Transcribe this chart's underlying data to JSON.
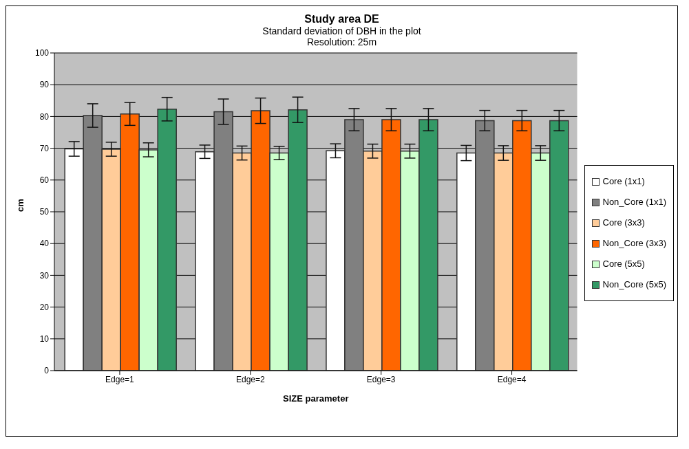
{
  "chart_data": {
    "type": "bar",
    "title": "Study area DE",
    "subtitle": "Standard deviation of DBH in the plot\nResolution: 25m",
    "xlabel": "SIZE parameter",
    "ylabel": "cm",
    "categories": [
      "Edge=1",
      "Edge=2",
      "Edge=3",
      "Edge=4"
    ],
    "series": [
      {
        "name": "Core (1x1)",
        "color": "#ffffff",
        "values": [
          69.8,
          68.9,
          69.2,
          68.5
        ],
        "errors": [
          2.3,
          2.1,
          2.2,
          2.4
        ]
      },
      {
        "name": "Non_Core (1x1)",
        "color": "#808080",
        "values": [
          80.3,
          81.5,
          79.0,
          78.7
        ],
        "errors": [
          3.7,
          4.0,
          3.5,
          3.2
        ]
      },
      {
        "name": "Core (3x3)",
        "color": "#ffcc99",
        "values": [
          69.7,
          68.5,
          69.1,
          68.5
        ],
        "errors": [
          2.2,
          2.2,
          2.2,
          2.3
        ]
      },
      {
        "name": "Non_Core (3x3)",
        "color": "#ff6600",
        "values": [
          80.8,
          81.8,
          79.0,
          78.7
        ],
        "errors": [
          3.6,
          4.0,
          3.5,
          3.2
        ]
      },
      {
        "name": "Core (5x5)",
        "color": "#ccffcc",
        "values": [
          69.5,
          68.5,
          69.1,
          68.5
        ],
        "errors": [
          2.2,
          2.1,
          2.2,
          2.3
        ]
      },
      {
        "name": "Non_Core (5x5)",
        "color": "#339966",
        "values": [
          82.3,
          82.1,
          79.0,
          78.7
        ],
        "errors": [
          3.7,
          4.0,
          3.5,
          3.2
        ]
      }
    ],
    "ylim": [
      0,
      100
    ],
    "yticks": [
      0,
      10,
      20,
      30,
      40,
      50,
      60,
      70,
      80,
      90,
      100
    ],
    "grid": "y",
    "legend": "right"
  }
}
